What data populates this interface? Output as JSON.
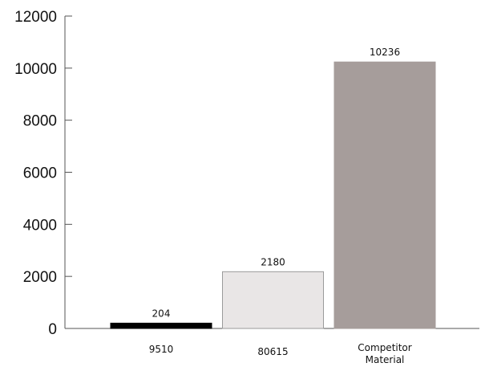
{
  "chart_data": {
    "type": "bar",
    "categories": [
      "9510",
      "80615",
      "Competitor Material"
    ],
    "category_lines": [
      [
        "9510"
      ],
      [
        "80615"
      ],
      [
        "Competitor",
        "Material"
      ]
    ],
    "values": [
      204,
      2180,
      10236
    ],
    "data_labels": [
      "204",
      "2180",
      "10236"
    ],
    "bar_colors": [
      "#000000",
      "#e9e6e6",
      "#a69d9b"
    ],
    "bar_outline_colors": [
      "#000000",
      "#9a9a9a",
      "#a69d9b"
    ],
    "title": "",
    "xlabel": "",
    "ylabel": "",
    "ylim": [
      0,
      12000
    ],
    "yticks": [
      0,
      2000,
      4000,
      6000,
      8000,
      10000,
      12000
    ],
    "ytick_labels": [
      "0",
      "2000",
      "4000",
      "6000",
      "8000",
      "10000",
      "12000"
    ],
    "grid": false,
    "legend": "none"
  }
}
